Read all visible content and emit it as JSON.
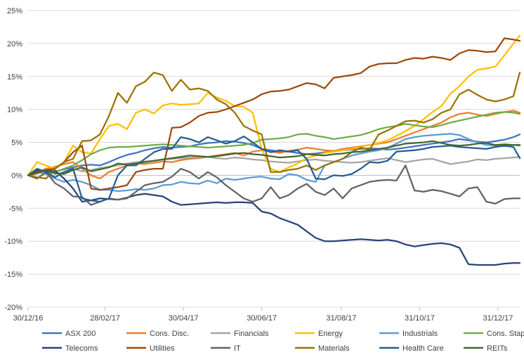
{
  "chart_data": {
    "type": "line",
    "title": "",
    "xlabel": "",
    "ylabel": "",
    "ylim": [
      -20,
      25
    ],
    "yticks": [
      -20,
      -15,
      -10,
      -5,
      0,
      5,
      10,
      15,
      20,
      25
    ],
    "ytick_labels": [
      "-20%",
      "-15%",
      "-10%",
      "-5%",
      "0%",
      "5%",
      "10%",
      "15%",
      "20%",
      "25%"
    ],
    "grid": true,
    "legend_placement": "bottom",
    "x_start": "2016-12-30",
    "x_end": "2018-01-17",
    "xticks": [
      "2016-12-30",
      "2017-02-28",
      "2017-04-30",
      "2017-06-30",
      "2017-08-31",
      "2017-10-31",
      "2017-12-31"
    ],
    "xtick_labels": [
      "30/12/16",
      "28/02/17",
      "30/04/17",
      "30/06/17",
      "31/08/17",
      "31/10/17",
      "31/12/17"
    ],
    "x": [
      "2016-12-30",
      "2017-01-06",
      "2017-01-13",
      "2017-01-20",
      "2017-01-27",
      "2017-02-03",
      "2017-02-10",
      "2017-02-17",
      "2017-02-24",
      "2017-03-03",
      "2017-03-10",
      "2017-03-17",
      "2017-03-24",
      "2017-03-31",
      "2017-04-07",
      "2017-04-14",
      "2017-04-21",
      "2017-04-28",
      "2017-05-05",
      "2017-05-12",
      "2017-05-19",
      "2017-05-26",
      "2017-06-02",
      "2017-06-09",
      "2017-06-16",
      "2017-06-23",
      "2017-06-30",
      "2017-07-07",
      "2017-07-14",
      "2017-07-21",
      "2017-07-28",
      "2017-08-04",
      "2017-08-11",
      "2017-08-18",
      "2017-08-25",
      "2017-09-01",
      "2017-09-08",
      "2017-09-15",
      "2017-09-22",
      "2017-09-29",
      "2017-10-06",
      "2017-10-13",
      "2017-10-20",
      "2017-10-27",
      "2017-11-03",
      "2017-11-10",
      "2017-11-17",
      "2017-11-24",
      "2017-12-01",
      "2017-12-08",
      "2017-12-15",
      "2017-12-22",
      "2017-12-29",
      "2018-01-05",
      "2018-01-12",
      "2018-01-17"
    ],
    "series": [
      {
        "name": "ASX 200",
        "color": "#4472c4",
        "values": [
          0,
          0.5,
          0.8,
          0.6,
          0.9,
          1.2,
          1.5,
          1.6,
          1.5,
          2.0,
          2.6,
          3.1,
          3.4,
          3.8,
          4.1,
          4.3,
          4.2,
          4.3,
          4.4,
          4.7,
          4.9,
          5.0,
          5.2,
          5.1,
          4.9,
          4.6,
          4.0,
          3.8,
          3.6,
          3.6,
          3.4,
          3.2,
          3.3,
          3.5,
          3.6,
          3.8,
          3.9,
          4.0,
          4.1,
          4.0,
          3.9,
          4.0,
          4.2,
          4.4,
          4.6,
          4.8,
          5.0,
          5.2,
          5.5,
          5.3,
          5.1,
          5.0,
          5.2,
          5.4,
          5.8,
          6.2
        ]
      },
      {
        "name": "Cons. Disc.",
        "color": "#ed7d31",
        "values": [
          0,
          0.5,
          1.0,
          1.3,
          1.7,
          2.0,
          1.0,
          0.0,
          -0.5,
          0.5,
          1.0,
          1.5,
          1.8,
          1.7,
          1.9,
          2.1,
          2.0,
          2.3,
          2.5,
          2.6,
          2.8,
          3.0,
          3.2,
          3.4,
          3.0,
          3.6,
          3.8,
          3.6,
          3.4,
          3.7,
          3.9,
          4.2,
          4.0,
          3.8,
          3.7,
          4.0,
          4.2,
          4.4,
          4.6,
          4.8,
          5.0,
          5.5,
          6.0,
          6.5,
          7.0,
          7.5,
          8.0,
          8.8,
          9.3,
          9.5,
          9.2,
          9.0,
          9.3,
          9.6,
          9.8,
          9.5
        ]
      },
      {
        "name": "Financials",
        "color": "#a5a5a5",
        "values": [
          0,
          0.5,
          0.8,
          0.2,
          0.5,
          1.0,
          0.6,
          0.8,
          1.1,
          1.3,
          1.5,
          1.8,
          2.0,
          2.1,
          2.2,
          2.4,
          2.5,
          2.6,
          2.7,
          2.7,
          2.8,
          2.6,
          2.5,
          2.7,
          2.6,
          2.4,
          2.3,
          2.1,
          2.0,
          1.9,
          2.1,
          2.3,
          2.4,
          2.2,
          2.1,
          2.0,
          1.9,
          2.0,
          2.2,
          2.4,
          2.6,
          2.3,
          2.0,
          2.2,
          2.4,
          2.5,
          2.1,
          1.7,
          1.9,
          2.1,
          2.4,
          2.3,
          2.5,
          2.6,
          2.7,
          2.8
        ]
      },
      {
        "name": "Energy",
        "color": "#ffc000",
        "values": [
          0,
          2.0,
          1.5,
          1.0,
          2.0,
          4.5,
          3.5,
          3.3,
          5.5,
          7.5,
          7.8,
          7.0,
          9.5,
          10.0,
          9.4,
          10.6,
          10.9,
          10.7,
          10.8,
          10.9,
          12.5,
          11.8,
          11.3,
          10.5,
          10.4,
          9.5,
          4.0,
          1.0,
          0.5,
          1.2,
          1.8,
          2.6,
          3.0,
          3.4,
          3.6,
          3.8,
          4.0,
          4.3,
          4.6,
          4.9,
          5.3,
          6.0,
          6.7,
          7.5,
          8.5,
          9.6,
          10.5,
          12.4,
          13.5,
          15.0,
          16.0,
          16.2,
          16.5,
          18.2,
          20.0,
          21.2
        ]
      },
      {
        "name": "Industrials",
        "color": "#5b9bd5",
        "values": [
          0,
          0.5,
          0.2,
          -0.5,
          -1.0,
          -0.7,
          -1.0,
          -1.5,
          -2.2,
          -2.2,
          -2.4,
          -2.3,
          -2.1,
          -2.2,
          -2.0,
          -1.5,
          -1.4,
          -1.0,
          -1.2,
          -1.3,
          -0.8,
          -1.2,
          -0.5,
          -0.7,
          -0.5,
          -0.3,
          -0.2,
          -0.5,
          -0.6,
          0.2,
          0.0,
          -0.7,
          -1.0,
          1.5,
          2.0,
          2.5,
          3.0,
          3.3,
          3.6,
          3.8,
          4.2,
          4.8,
          5.5,
          5.8,
          6.0,
          6.1,
          6.2,
          6.3,
          6.1,
          5.5,
          5.0,
          4.6,
          4.5,
          4.4,
          4.6,
          4.5
        ]
      },
      {
        "name": "Cons. Staples",
        "color": "#70ad47",
        "values": [
          0,
          0.8,
          0.5,
          0.5,
          1.0,
          1.5,
          2.3,
          3.2,
          3.8,
          4.2,
          4.3,
          4.3,
          4.4,
          4.5,
          4.6,
          4.7,
          4.6,
          4.5,
          4.4,
          4.3,
          4.2,
          4.3,
          4.4,
          4.5,
          4.6,
          4.9,
          5.4,
          5.5,
          5.6,
          5.8,
          6.2,
          6.3,
          6.0,
          5.8,
          5.5,
          5.7,
          5.9,
          6.1,
          6.5,
          7.0,
          7.3,
          7.5,
          7.8,
          7.6,
          7.4,
          7.3,
          7.6,
          8.0,
          8.3,
          8.6,
          8.9,
          9.2,
          9.5,
          9.6,
          9.5,
          9.3
        ]
      },
      {
        "name": "Telecoms",
        "color": "#264478",
        "values": [
          0,
          0.8,
          0.5,
          0.7,
          -0.5,
          -2.0,
          -4.0,
          -3.8,
          -3.5,
          -3.6,
          -3.7,
          -3.4,
          -3.0,
          -2.8,
          -3.0,
          -3.2,
          -4.0,
          -4.5,
          -4.4,
          -4.3,
          -4.2,
          -4.1,
          -4.2,
          -4.1,
          -4.1,
          -4.2,
          -5.5,
          -5.8,
          -6.5,
          -7.0,
          -7.5,
          -8.5,
          -9.5,
          -10.0,
          -10.0,
          -9.9,
          -9.8,
          -9.7,
          -9.8,
          -9.9,
          -9.8,
          -10.0,
          -10.5,
          -10.8,
          -10.6,
          -10.4,
          -10.3,
          -10.5,
          -11.0,
          -13.5,
          -13.6,
          -13.6,
          -13.6,
          -13.4,
          -13.3,
          -13.3
        ]
      },
      {
        "name": "Utilities",
        "color": "#9e480e",
        "values": [
          0,
          0.3,
          0.8,
          1.0,
          2.0,
          3.5,
          4.5,
          -2.0,
          -2.2,
          -2.0,
          -1.8,
          -1.5,
          0.5,
          0.8,
          1.0,
          1.0,
          7.2,
          7.3,
          8.0,
          9.0,
          9.5,
          9.6,
          10.0,
          10.5,
          11.0,
          11.5,
          12.3,
          12.7,
          12.8,
          13.0,
          13.5,
          14.0,
          13.8,
          13.2,
          14.8,
          15.0,
          15.2,
          15.5,
          16.5,
          16.9,
          17.0,
          17.0,
          17.5,
          17.8,
          17.7,
          18.0,
          17.8,
          17.5,
          18.5,
          19.0,
          18.9,
          18.7,
          18.8,
          20.8,
          20.6,
          20.4
        ]
      },
      {
        "name": "IT",
        "color": "#636363",
        "values": [
          0,
          -0.5,
          0.5,
          -1.2,
          -2.0,
          -3.2,
          -3.3,
          -4.5,
          -4.0,
          -3.5,
          -3.7,
          -3.5,
          -2.5,
          -1.5,
          -1.2,
          -1.0,
          -0.2,
          1.0,
          0.5,
          -0.5,
          0.5,
          -0.3,
          -1.5,
          -2.5,
          -3.5,
          -4.0,
          -3.5,
          -1.8,
          -3.5,
          -3.0,
          -2.0,
          -1.3,
          -2.5,
          -3.0,
          -2.0,
          -3.5,
          -2.0,
          -1.5,
          -1.0,
          -0.8,
          -0.7,
          -0.8,
          1.5,
          -2.3,
          -2.5,
          -2.2,
          -2.4,
          -2.8,
          -3.2,
          -2.0,
          -1.8,
          -4.0,
          -4.3,
          -3.6,
          -3.5,
          -3.5
        ]
      },
      {
        "name": "Materials",
        "color": "#997300",
        "values": [
          0,
          -0.3,
          -0.5,
          1.0,
          2.0,
          2.5,
          5.2,
          5.3,
          6.2,
          9.0,
          12.5,
          11.0,
          13.5,
          14.2,
          15.6,
          15.2,
          12.8,
          14.5,
          13.0,
          13.2,
          12.8,
          11.5,
          10.8,
          9.5,
          7.5,
          6.8,
          6.2,
          0.5,
          0.5,
          0.8,
          1.0,
          1.5,
          0.8,
          1.5,
          2.0,
          2.5,
          3.5,
          4.2,
          3.9,
          6.2,
          6.8,
          7.5,
          8.2,
          8.3,
          8.0,
          8.5,
          9.5,
          10.0,
          12.3,
          13.0,
          12.2,
          11.5,
          11.2,
          11.5,
          12.0,
          15.6
        ]
      },
      {
        "name": "Health Care",
        "color": "#255e91",
        "values": [
          0,
          1.0,
          0.5,
          -0.3,
          0.5,
          1.0,
          -3.5,
          -3.8,
          -4.0,
          -3.5,
          0.0,
          1.5,
          1.5,
          2.5,
          3.5,
          4.0,
          4.0,
          5.8,
          5.5,
          5.0,
          5.8,
          5.3,
          4.8,
          5.2,
          5.9,
          5.0,
          4.0,
          3.5,
          3.8,
          3.6,
          3.8,
          2.5,
          -0.5,
          -0.6,
          0.0,
          -0.1,
          0.2,
          1.0,
          2.0,
          1.9,
          2.2,
          3.6,
          3.7,
          3.8,
          4.0,
          4.3,
          4.4,
          4.5,
          4.3,
          4.2,
          4.1,
          4.0,
          4.3,
          4.5,
          4.3,
          2.6
        ]
      },
      {
        "name": "REITs",
        "color": "#43682b",
        "values": [
          0,
          0.5,
          0.8,
          0.3,
          0.2,
          0.8,
          1.2,
          0.6,
          0.9,
          1.2,
          1.8,
          1.6,
          1.8,
          2.0,
          2.2,
          2.4,
          2.6,
          2.8,
          3.0,
          2.9,
          2.8,
          2.9,
          3.1,
          3.3,
          3.4,
          3.2,
          3.1,
          2.9,
          2.7,
          2.8,
          2.9,
          3.2,
          3.1,
          3.0,
          3.2,
          3.3,
          3.5,
          3.6,
          3.8,
          4.0,
          4.2,
          4.5,
          4.8,
          4.9,
          5.0,
          5.2,
          4.9,
          4.6,
          4.5,
          4.6,
          4.8,
          4.9,
          4.6,
          4.7,
          4.6,
          4.6
        ]
      }
    ]
  }
}
